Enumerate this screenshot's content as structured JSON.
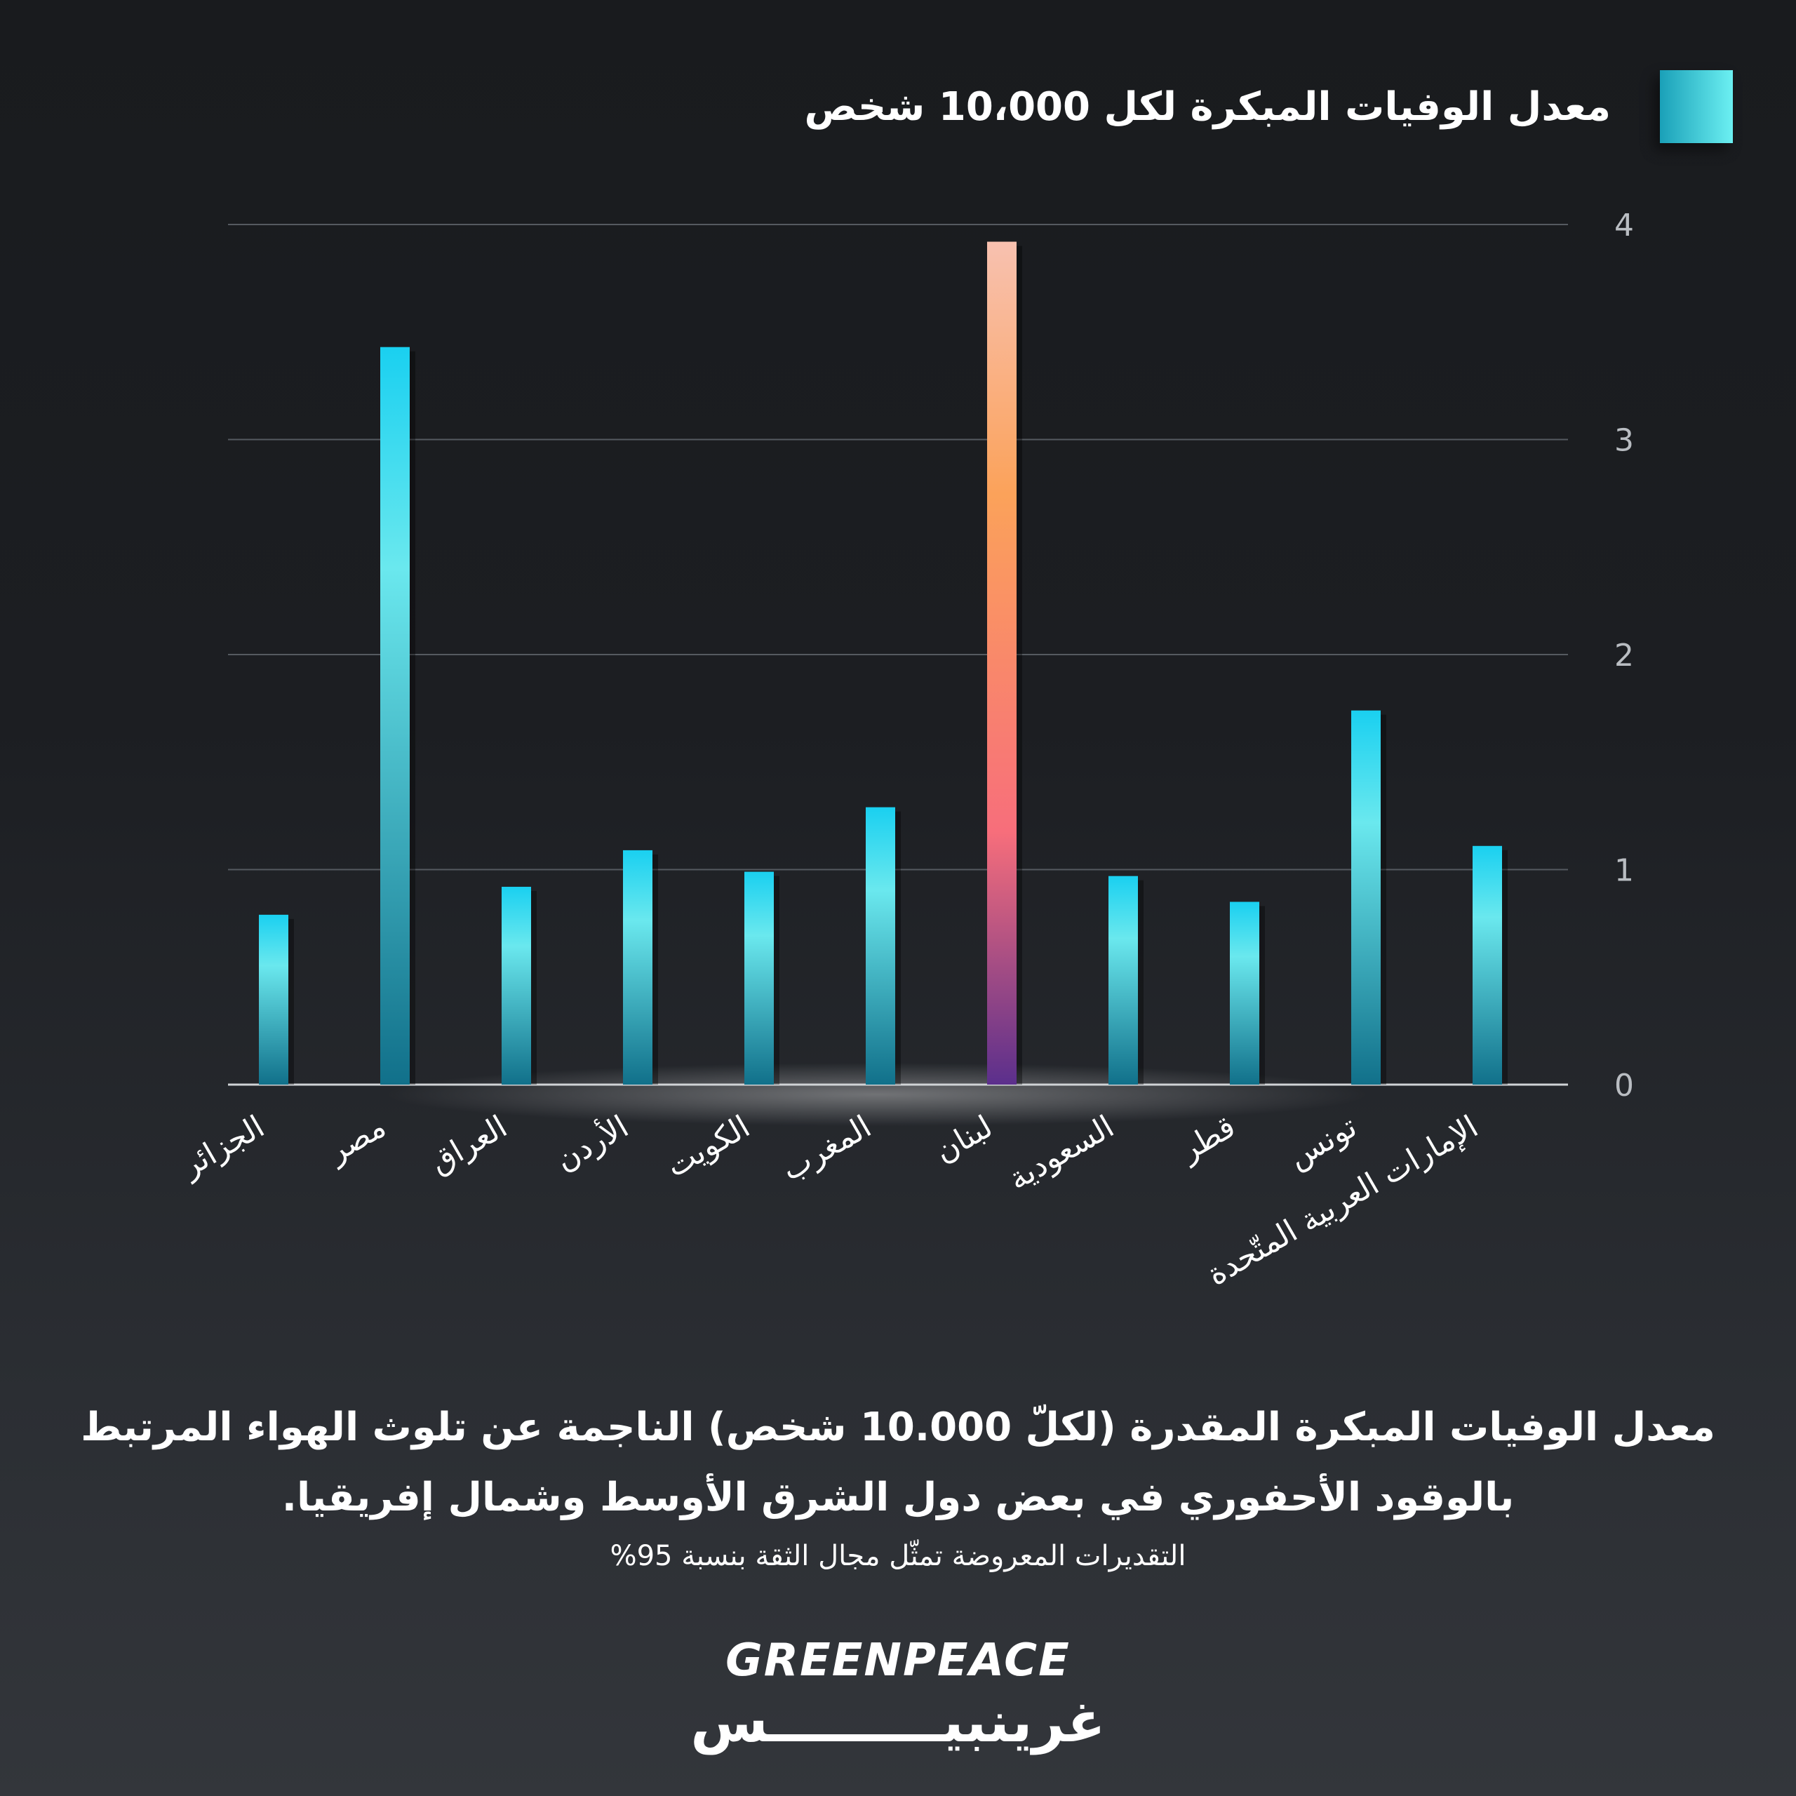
{
  "legend": {
    "label": "معدل الوفيات المبكرة لكل 10،000 شخص",
    "swatch_color": "#3fd6e6"
  },
  "chart_data": {
    "type": "bar",
    "categories": [
      "الجزائر",
      "مصر",
      "العراق",
      "الأردن",
      "الكويت",
      "المغرب",
      "لبنان",
      "السعودية",
      "قطر",
      "تونس",
      "الإمارات العربية المتّحدة"
    ],
    "series": [
      {
        "name": "معدل الوفيات المبكرة لكل 10،000 شخص",
        "values": [
          0.79,
          3.43,
          0.92,
          1.09,
          0.99,
          1.29,
          3.92,
          0.97,
          0.85,
          1.74,
          1.11
        ]
      }
    ],
    "highlight_category": "لبنان",
    "ylim": [
      0,
      4
    ],
    "yticks": [
      "0",
      "1",
      "2",
      "3",
      "4"
    ],
    "grid": true,
    "colors": {
      "bar_top": "#1ad0f0",
      "bar_mid": "#6ae8ee",
      "bar_bottom": "#11708a",
      "highlight_top": "#f8c1b0",
      "highlight_mid": "#f76e7b",
      "highlight_bottom": "#5b2f8c"
    }
  },
  "caption": {
    "line1": "معدل الوفيات المبكرة المقدرة  (لكلّ 10.000 شخص) الناجمة عن تلوث الهواء المرتبط",
    "line2": "بالوقود الأحفوري في بعض دول الشرق الأوسط وشمال إفريقيا.",
    "note": "التقديرات المعروضة تمثّل مجال الثقة بنسبة 95%"
  },
  "logo": {
    "en": "GREENPEACE",
    "ar": "غرينبيـــــــــس"
  }
}
